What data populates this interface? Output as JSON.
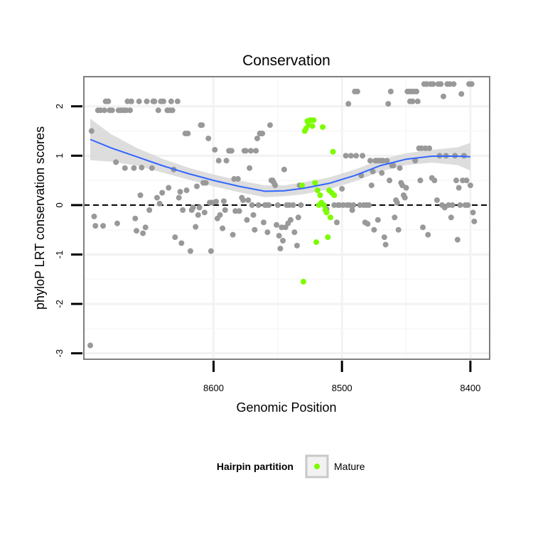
{
  "chart_data": {
    "type": "scatter",
    "title": "Conservation",
    "xlabel": "Genomic Position",
    "ylabel": "phyloP LRT conservation scores",
    "x_reversed": true,
    "xlim": [
      8701,
      8385
    ],
    "ylim": [
      -3.12,
      2.6
    ],
    "x_ticks": [
      8600,
      8500,
      8400
    ],
    "y_ticks": [
      -3,
      -2,
      -1,
      0,
      1,
      2
    ],
    "grid": true,
    "reference_line": {
      "y": 0,
      "style": "dashed"
    },
    "legend": {
      "title": "Hairpin partition",
      "placement": "bottom",
      "entries": [
        {
          "label": "Mature",
          "color": "#7cfc00"
        }
      ]
    },
    "colors": {
      "other": "#999999",
      "mature": "#7cfc00",
      "smooth": "#3366ff",
      "ribbon": "#d9d9d9",
      "reference": "#000000"
    },
    "series": [
      {
        "group": "other",
        "points": [
          [
            8696,
            -2.84
          ],
          [
            8695,
            1.5
          ],
          [
            8693,
            -0.23
          ],
          [
            8692,
            -0.42
          ],
          [
            8690,
            1.92
          ],
          [
            8688,
            1.92
          ],
          [
            8686,
            -0.42
          ],
          [
            8685,
            1.92
          ],
          [
            8684,
            2.1
          ],
          [
            8682,
            2.1
          ],
          [
            8681,
            1.92
          ],
          [
            8679,
            1.92
          ],
          [
            8676,
            0.87
          ],
          [
            8675,
            -0.37
          ],
          [
            8674,
            1.92
          ],
          [
            8672,
            1.92
          ],
          [
            8670,
            1.92
          ],
          [
            8669,
            0.75
          ],
          [
            8668,
            1.92
          ],
          [
            8667,
            2.1
          ],
          [
            8665,
            1.92
          ],
          [
            8664,
            2.1
          ],
          [
            8662,
            0.75
          ],
          [
            8661,
            -0.27
          ],
          [
            8660,
            -0.52
          ],
          [
            8658,
            2.1
          ],
          [
            8657,
            0.2
          ],
          [
            8656,
            0.76
          ],
          [
            8655,
            -0.57
          ],
          [
            8653,
            -0.45
          ],
          [
            8652,
            2.1
          ],
          [
            8650,
            -0.1
          ],
          [
            8648,
            0.75
          ],
          [
            8647,
            2.1
          ],
          [
            8646,
            2.1
          ],
          [
            8644,
            0.15
          ],
          [
            8643,
            1.92
          ],
          [
            8642,
            0.03
          ],
          [
            8641,
            2.1
          ],
          [
            8640,
            0.25
          ],
          [
            8639,
            2.1
          ],
          [
            8636,
            1.92
          ],
          [
            8635,
            0.35
          ],
          [
            8634,
            1.92
          ],
          [
            8633,
            2.1
          ],
          [
            8632,
            1.92
          ],
          [
            8631,
            0.72
          ],
          [
            8630,
            -0.65
          ],
          [
            8628,
            2.1
          ],
          [
            8627,
            0.15
          ],
          [
            8626,
            0.27
          ],
          [
            8625,
            -0.77
          ],
          [
            8624,
            -0.1
          ],
          [
            8622,
            1.45
          ],
          [
            8621,
            0.3
          ],
          [
            8620,
            1.45
          ],
          [
            8618,
            -0.93
          ],
          [
            8617,
            -0.1
          ],
          [
            8616,
            -0.05
          ],
          [
            8614,
            -0.44
          ],
          [
            8613,
            0.38
          ],
          [
            8612,
            -0.2
          ],
          [
            8611,
            -0.05
          ],
          [
            8610,
            1.62
          ],
          [
            8609,
            1.62
          ],
          [
            8608,
            0.45
          ],
          [
            8607,
            -0.15
          ],
          [
            8606,
            0.45
          ],
          [
            8604,
            1.35
          ],
          [
            8603,
            0.05
          ],
          [
            8602,
            -0.93
          ],
          [
            8601,
            0.05
          ],
          [
            8599,
            1.12
          ],
          [
            8598,
            0.07
          ],
          [
            8597,
            -0.27
          ],
          [
            8596,
            0.9
          ],
          [
            8595,
            -0.2
          ],
          [
            8593,
            -0.47
          ],
          [
            8592,
            0.08
          ],
          [
            8591,
            -0.1
          ],
          [
            8590,
            0.9
          ],
          [
            8588,
            1.1
          ],
          [
            8587,
            1.1
          ],
          [
            8586,
            1.1
          ],
          [
            8585,
            -0.6
          ],
          [
            8584,
            0.53
          ],
          [
            8583,
            -0.12
          ],
          [
            8581,
            0.53
          ],
          [
            8580,
            -0.12
          ],
          [
            8578,
            0.15
          ],
          [
            8577,
            0.1
          ],
          [
            8576,
            1.1
          ],
          [
            8575,
            1.1
          ],
          [
            8574,
            -0.3
          ],
          [
            8573,
            0.1
          ],
          [
            8572,
            0.75
          ],
          [
            8571,
            1.1
          ],
          [
            8570,
            0.0
          ],
          [
            8569,
            -0.2
          ],
          [
            8568,
            -0.5
          ],
          [
            8567,
            1.1
          ],
          [
            8566,
            1.35
          ],
          [
            8565,
            0.0
          ],
          [
            8564,
            1.45
          ],
          [
            8563,
            1.45
          ],
          [
            8562,
            1.45
          ],
          [
            8561,
            -0.35
          ],
          [
            8560,
            0.0
          ],
          [
            8559,
            0.0
          ],
          [
            8558,
            -0.55
          ],
          [
            8557,
            0.0
          ],
          [
            8556,
            1.62
          ],
          [
            8555,
            0.5
          ],
          [
            8554,
            0.5
          ],
          [
            8553,
            0.45
          ],
          [
            8552,
            0.4
          ],
          [
            8551,
            -0.4
          ],
          [
            8550,
            0.0
          ],
          [
            8549,
            -0.62
          ],
          [
            8548,
            -0.88
          ],
          [
            8547,
            -0.45
          ],
          [
            8546,
            -0.72
          ],
          [
            8545,
            0.72
          ],
          [
            8544,
            -0.45
          ],
          [
            8543,
            0.0
          ],
          [
            8542,
            -0.37
          ],
          [
            8541,
            0.0
          ],
          [
            8540,
            -0.3
          ],
          [
            8538,
            0.0
          ],
          [
            8537,
            -0.55
          ],
          [
            8535,
            -0.82
          ],
          [
            8534,
            -0.25
          ],
          [
            8533,
            0.4
          ],
          [
            8532,
            0.0
          ],
          [
            8512,
            -0.08
          ],
          [
            8506,
            0.0
          ],
          [
            8504,
            -0.35
          ],
          [
            8503,
            0.0
          ],
          [
            8502,
            0.0
          ],
          [
            8500,
            0.33
          ],
          [
            8499,
            0.0
          ],
          [
            8497,
            1.0
          ],
          [
            8496,
            0.0
          ],
          [
            8495,
            2.05
          ],
          [
            8494,
            0.0
          ],
          [
            8493,
            1.0
          ],
          [
            8492,
            -0.1
          ],
          [
            8491,
            0.0
          ],
          [
            8490,
            2.3
          ],
          [
            8489,
            1.0
          ],
          [
            8488,
            2.3
          ],
          [
            8486,
            0.0
          ],
          [
            8485,
            0.6
          ],
          [
            8484,
            1.0
          ],
          [
            8483,
            0.0
          ],
          [
            8482,
            -0.35
          ],
          [
            8481,
            0.0
          ],
          [
            8480,
            -0.38
          ],
          [
            8479,
            0.0
          ],
          [
            8478,
            0.9
          ],
          [
            8477,
            0.4
          ],
          [
            8476,
            0.68
          ],
          [
            8475,
            -0.5
          ],
          [
            8474,
            0.9
          ],
          [
            8473,
            0.9
          ],
          [
            8472,
            -0.3
          ],
          [
            8471,
            0.9
          ],
          [
            8470,
            0.9
          ],
          [
            8469,
            0.65
          ],
          [
            8468,
            0.9
          ],
          [
            8467,
            -0.65
          ],
          [
            8466,
            -0.8
          ],
          [
            8465,
            0.9
          ],
          [
            8464,
            2.05
          ],
          [
            8463,
            0.5
          ],
          [
            8462,
            2.3
          ],
          [
            8461,
            0.8
          ],
          [
            8460,
            0.8
          ],
          [
            8459,
            -0.25
          ],
          [
            8458,
            0.1
          ],
          [
            8457,
            0.05
          ],
          [
            8456,
            -0.5
          ],
          [
            8455,
            0.75
          ],
          [
            8454,
            0.45
          ],
          [
            8453,
            0.4
          ],
          [
            8452,
            0.2
          ],
          [
            8451,
            0.15
          ],
          [
            8450,
            0.35
          ],
          [
            8449,
            2.3
          ],
          [
            8448,
            2.3
          ],
          [
            8447,
            2.1
          ],
          [
            8446,
            2.3
          ],
          [
            8445,
            2.1
          ],
          [
            8444,
            2.3
          ],
          [
            8443,
            0.9
          ],
          [
            8442,
            2.3
          ],
          [
            8441,
            2.1
          ],
          [
            8440,
            1.15
          ],
          [
            8439,
            0.5
          ],
          [
            8438,
            1.15
          ],
          [
            8437,
            -0.45
          ],
          [
            8436,
            2.45
          ],
          [
            8435,
            1.15
          ],
          [
            8434,
            2.45
          ],
          [
            8433,
            -0.6
          ],
          [
            8432,
            1.15
          ],
          [
            8431,
            2.45
          ],
          [
            8430,
            0.55
          ],
          [
            8429,
            2.45
          ],
          [
            8428,
            0.5
          ],
          [
            8426,
            0.1
          ],
          [
            8425,
            2.45
          ],
          [
            8424,
            1.0
          ],
          [
            8423,
            2.45
          ],
          [
            8422,
            0.0
          ],
          [
            8421,
            2.2
          ],
          [
            8420,
            -0.05
          ],
          [
            8419,
            1.0
          ],
          [
            8418,
            2.45
          ],
          [
            8417,
            0.0
          ],
          [
            8416,
            2.45
          ],
          [
            8415,
            -0.25
          ],
          [
            8414,
            0.0
          ],
          [
            8413,
            2.45
          ],
          [
            8412,
            1.0
          ],
          [
            8411,
            0.5
          ],
          [
            8410,
            -0.7
          ],
          [
            8409,
            0.35
          ],
          [
            8408,
            0.0
          ],
          [
            8407,
            2.25
          ],
          [
            8406,
            0.5
          ],
          [
            8405,
            1.0
          ],
          [
            8404,
            0.0
          ],
          [
            8403,
            0.5
          ],
          [
            8402,
            0.0
          ],
          [
            8401,
            2.45
          ],
          [
            8400,
            0.4
          ],
          [
            8399,
            2.45
          ],
          [
            8398,
            -0.15
          ],
          [
            8397,
            -0.33
          ]
        ]
      },
      {
        "group": "mature",
        "points": [
          [
            8531,
            0.4
          ],
          [
            8530,
            -1.55
          ],
          [
            8529,
            1.5
          ],
          [
            8528,
            1.55
          ],
          [
            8527,
            1.7
          ],
          [
            8526,
            1.62
          ],
          [
            8525,
            1.72
          ],
          [
            8524,
            1.72
          ],
          [
            8523,
            1.6
          ],
          [
            8522,
            1.72
          ],
          [
            8521,
            0.45
          ],
          [
            8520,
            -0.75
          ],
          [
            8519,
            0.3
          ],
          [
            8518,
            0.0
          ],
          [
            8517,
            0.2
          ],
          [
            8516,
            0.05
          ],
          [
            8515,
            1.58
          ],
          [
            8514,
            0.0
          ],
          [
            8513,
            -0.1
          ],
          [
            8512,
            -0.15
          ],
          [
            8511,
            -0.65
          ],
          [
            8510,
            0.3
          ],
          [
            8509,
            -0.25
          ],
          [
            8508,
            0.25
          ],
          [
            8507,
            1.08
          ],
          [
            8506,
            0.2
          ]
        ]
      }
    ],
    "smooth": {
      "x": [
        8696,
        8680,
        8660,
        8640,
        8620,
        8600,
        8580,
        8560,
        8545,
        8530,
        8510,
        8490,
        8470,
        8450,
        8430,
        8410,
        8400
      ],
      "y": [
        1.33,
        1.16,
        0.98,
        0.8,
        0.64,
        0.5,
        0.38,
        0.28,
        0.29,
        0.34,
        0.44,
        0.6,
        0.8,
        0.93,
        0.99,
        0.99,
        0.98
      ],
      "se": [
        0.42,
        0.28,
        0.18,
        0.14,
        0.12,
        0.12,
        0.12,
        0.12,
        0.11,
        0.12,
        0.12,
        0.12,
        0.12,
        0.12,
        0.13,
        0.18,
        0.28
      ]
    }
  }
}
